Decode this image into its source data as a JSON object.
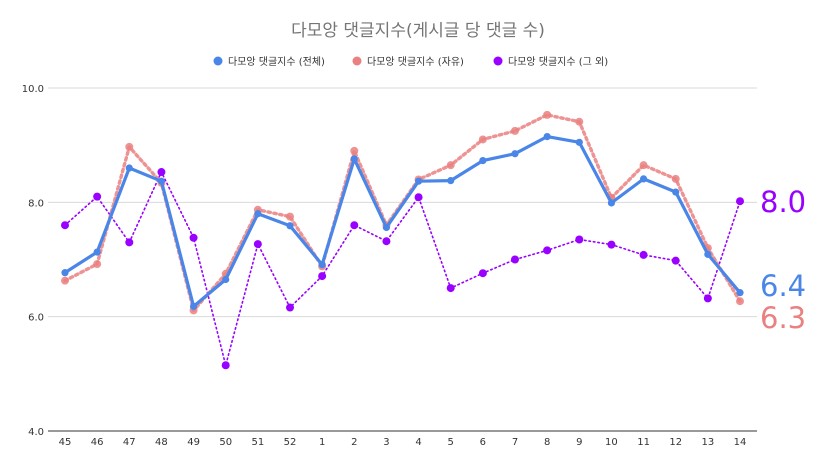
{
  "chart_data": {
    "type": "line",
    "title": "다모앙 댓글지수(게시글 당 댓글 수)",
    "categories": [
      "45",
      "46",
      "47",
      "48",
      "49",
      "50",
      "51",
      "52",
      "1",
      "2",
      "3",
      "4",
      "5",
      "6",
      "7",
      "8",
      "9",
      "10",
      "11",
      "12",
      "13",
      "14"
    ],
    "ylim": [
      4.0,
      10.0
    ],
    "y_ticks": [
      "4.0",
      "6.0",
      "8.0",
      "10.0"
    ],
    "grid": true,
    "legend_position": "top",
    "series": [
      {
        "name": "다모앙 댓글지수 (전체)",
        "color": "#4a86e8",
        "style": "solid",
        "values": [
          6.77,
          7.13,
          8.6,
          8.37,
          6.18,
          6.65,
          7.8,
          7.59,
          6.91,
          8.76,
          7.56,
          8.37,
          8.38,
          8.73,
          8.85,
          9.15,
          9.05,
          7.99,
          8.41,
          8.18,
          7.09,
          6.42
        ],
        "end_label": "6.4"
      },
      {
        "name": "다모앙 댓글지수 (자유)",
        "color": "#ea8080",
        "style": "dotted",
        "values": [
          6.63,
          6.92,
          8.97,
          8.34,
          6.11,
          6.75,
          7.87,
          7.75,
          6.88,
          8.9,
          7.6,
          8.4,
          8.65,
          9.1,
          9.25,
          9.53,
          9.41,
          8.08,
          8.65,
          8.41,
          7.2,
          6.27
        ],
        "end_label": "6.3"
      },
      {
        "name": "다모앙 댓글지수 (그 외)",
        "color": "#9900ff",
        "style": "dotted-thin",
        "values": [
          7.6,
          8.1,
          7.3,
          8.53,
          7.38,
          5.15,
          7.27,
          6.16,
          6.71,
          7.6,
          7.32,
          8.09,
          6.5,
          6.76,
          7.0,
          7.16,
          7.35,
          7.26,
          7.08,
          6.98,
          6.32,
          8.02
        ],
        "end_label": "8.0"
      }
    ]
  }
}
